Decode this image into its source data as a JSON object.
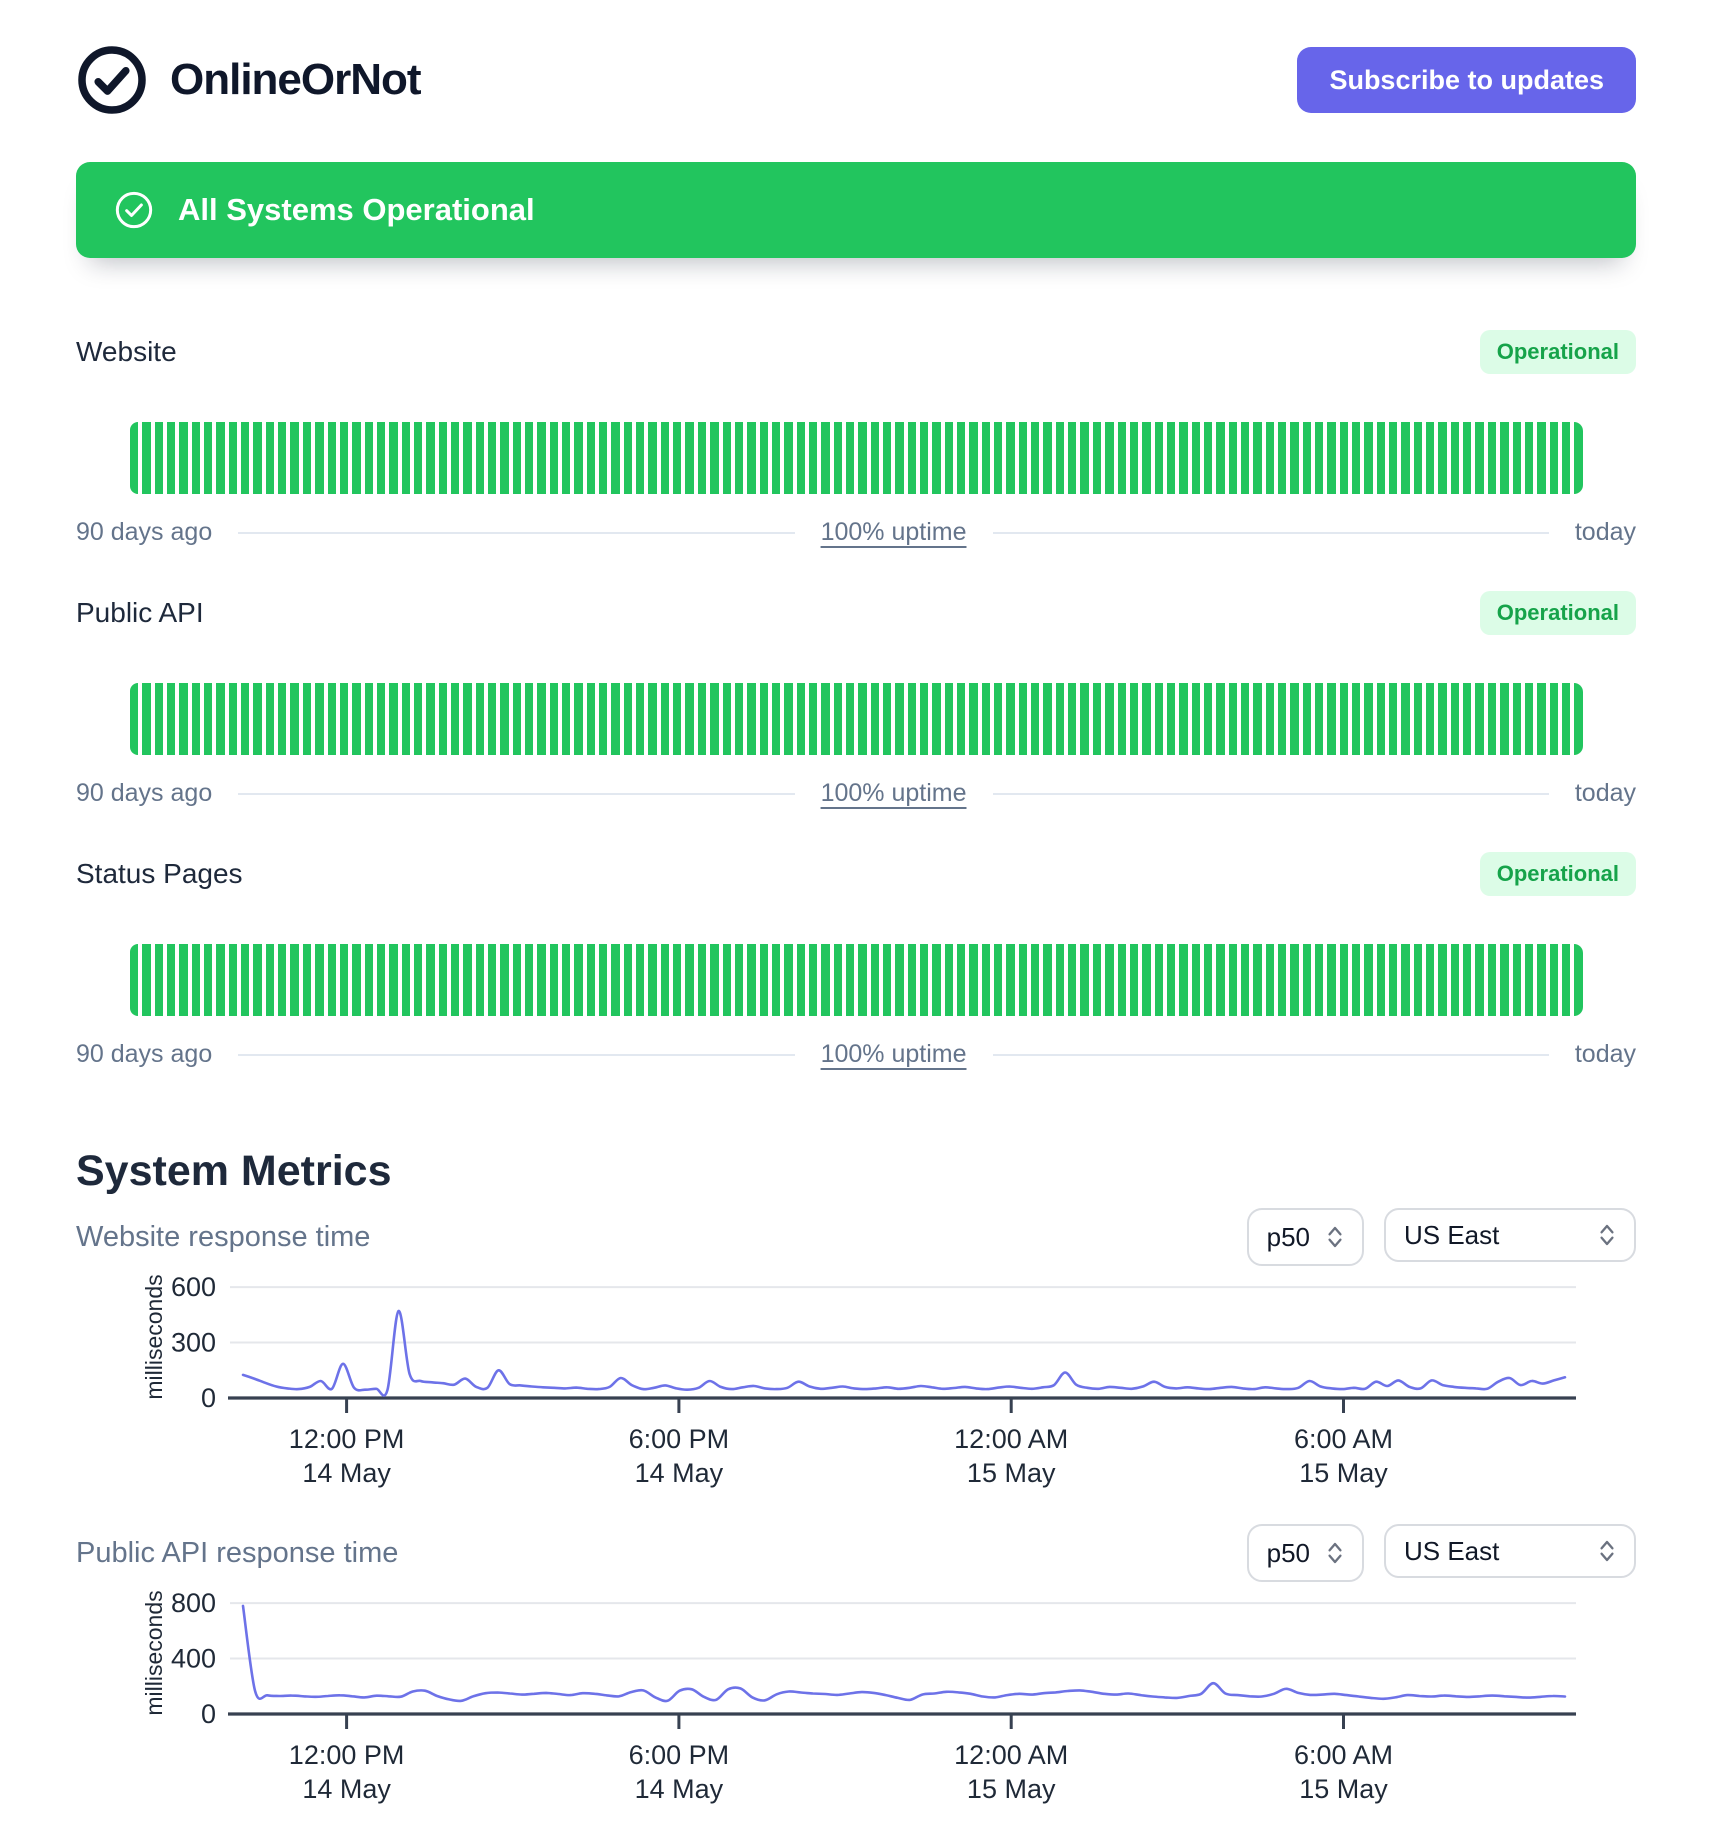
{
  "header": {
    "logo_text": "OnlineOrNot",
    "subscribe_label": "Subscribe to updates"
  },
  "banner": {
    "label": "All Systems Operational"
  },
  "colors": {
    "brand_green": "#22c55e",
    "badge_bg": "#dcfce7",
    "badge_text": "#16a34a",
    "accent_indigo": "#6765ea",
    "chart_line": "#6d72e8",
    "grid_gray": "#e5e7eb",
    "axis_dark": "#374151"
  },
  "services": [
    {
      "name": "Website",
      "status": "Operational",
      "range_start": "90 days ago",
      "uptime_label": "100% uptime",
      "range_end": "today",
      "bars": {
        "count": 118,
        "color": "#22c55e",
        "state": "operational"
      }
    },
    {
      "name": "Public API",
      "status": "Operational",
      "range_start": "90 days ago",
      "uptime_label": "100% uptime",
      "range_end": "today",
      "bars": {
        "count": 118,
        "color": "#22c55e",
        "state": "operational"
      }
    },
    {
      "name": "Status Pages",
      "status": "Operational",
      "range_start": "90 days ago",
      "uptime_label": "100% uptime",
      "range_end": "today",
      "bars": {
        "count": 118,
        "color": "#22c55e",
        "state": "operational"
      }
    }
  ],
  "metrics": {
    "heading": "System Metrics"
  },
  "chart_data": [
    {
      "type": "line",
      "title": "Website response time",
      "ylabel": "milliseconds",
      "yticks": [
        0,
        300,
        600
      ],
      "ylim": [
        0,
        660
      ],
      "grid": "horizontal-only",
      "legend": "none",
      "line_color": "#6d72e8",
      "controls": {
        "percentile": "p50",
        "region": "US East"
      },
      "x_ticks": [
        {
          "time": "12:00 PM",
          "date": "14 May",
          "frac": 0.087
        },
        {
          "time": "6:00 PM",
          "date": "14 May",
          "frac": 0.335
        },
        {
          "time": "12:00 AM",
          "date": "15 May",
          "frac": 0.583
        },
        {
          "time": "6:00 AM",
          "date": "15 May",
          "frac": 0.831
        }
      ],
      "series": [
        {
          "name": "p50 response time (ms)",
          "values": [
            125,
            105,
            82,
            62,
            52,
            48,
            60,
            92,
            50,
            185,
            55,
            45,
            50,
            42,
            470,
            130,
            92,
            85,
            80,
            72,
            105,
            60,
            55,
            150,
            75,
            68,
            62,
            58,
            55,
            52,
            56,
            50,
            48,
            60,
            108,
            70,
            48,
            55,
            68,
            52,
            45,
            55,
            92,
            60,
            48,
            58,
            65,
            52,
            48,
            55,
            88,
            62,
            50,
            55,
            62,
            52,
            48,
            52,
            58,
            50,
            55,
            65,
            58,
            50,
            54,
            60,
            52,
            48,
            56,
            62,
            55,
            50,
            58,
            70,
            138,
            72,
            55,
            50,
            60,
            55,
            50,
            62,
            88,
            60,
            52,
            58,
            52,
            48,
            55,
            60,
            52,
            48,
            58,
            52,
            48,
            55,
            92,
            62,
            52,
            48,
            55,
            50,
            88,
            65,
            95,
            60,
            52,
            95,
            70,
            60,
            55,
            52,
            50,
            88,
            108,
            70,
            92,
            78,
            95,
            112
          ]
        }
      ]
    },
    {
      "type": "line",
      "title": "Public API response time",
      "ylabel": "milliseconds",
      "yticks": [
        0,
        400,
        800
      ],
      "ylim": [
        0,
        880
      ],
      "grid": "horizontal-only",
      "legend": "none",
      "line_color": "#6d72e8",
      "controls": {
        "percentile": "p50",
        "region": "US East"
      },
      "x_ticks": [
        {
          "time": "12:00 PM",
          "date": "14 May",
          "frac": 0.087
        },
        {
          "time": "6:00 PM",
          "date": "14 May",
          "frac": 0.335
        },
        {
          "time": "12:00 AM",
          "date": "15 May",
          "frac": 0.583
        },
        {
          "time": "6:00 AM",
          "date": "15 May",
          "frac": 0.831
        }
      ],
      "series": [
        {
          "name": "p50 response time (ms)",
          "values": [
            780,
            165,
            135,
            130,
            133,
            128,
            124,
            130,
            135,
            128,
            120,
            132,
            128,
            125,
            162,
            168,
            130,
            105,
            95,
            128,
            150,
            155,
            148,
            140,
            146,
            152,
            144,
            136,
            150,
            146,
            134,
            128,
            158,
            170,
            120,
            95,
            168,
            178,
            124,
            102,
            178,
            185,
            120,
            98,
            142,
            162,
            155,
            148,
            144,
            138,
            148,
            158,
            152,
            136,
            116,
            102,
            140,
            148,
            160,
            156,
            146,
            126,
            120,
            136,
            146,
            140,
            150,
            156,
            166,
            170,
            160,
            146,
            140,
            148,
            136,
            126,
            120,
            116,
            130,
            146,
            222,
            148,
            136,
            128,
            126,
            146,
            182,
            152,
            138,
            140,
            146,
            136,
            126,
            116,
            110,
            120,
            136,
            130,
            126,
            133,
            128,
            123,
            128,
            133,
            128,
            123,
            118,
            124,
            130,
            126
          ]
        }
      ]
    }
  ]
}
